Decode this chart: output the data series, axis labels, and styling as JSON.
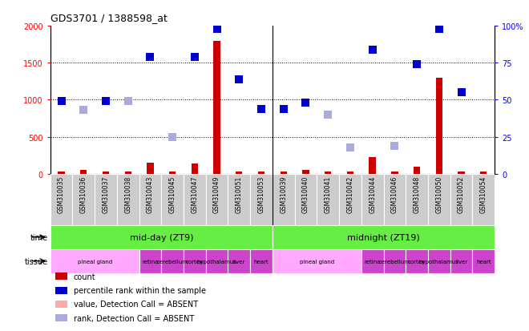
{
  "title": "GDS3701 / 1388598_at",
  "samples": [
    "GSM310035",
    "GSM310036",
    "GSM310037",
    "GSM310038",
    "GSM310043",
    "GSM310045",
    "GSM310047",
    "GSM310049",
    "GSM310051",
    "GSM310053",
    "GSM310039",
    "GSM310040",
    "GSM310041",
    "GSM310042",
    "GSM310044",
    "GSM310046",
    "GSM310048",
    "GSM310050",
    "GSM310052",
    "GSM310054"
  ],
  "count_values": [
    30,
    50,
    30,
    30,
    150,
    30,
    140,
    1800,
    30,
    30,
    30,
    50,
    30,
    30,
    220,
    30,
    100,
    1300,
    30,
    30
  ],
  "count_absent": [
    false,
    false,
    false,
    false,
    false,
    false,
    false,
    false,
    false,
    false,
    false,
    false,
    false,
    false,
    false,
    false,
    false,
    false,
    false,
    false
  ],
  "rank_values": [
    980,
    860,
    980,
    980,
    1580,
    500,
    1580,
    1960,
    1280,
    880,
    880,
    960,
    800,
    360,
    1680,
    380,
    1480,
    1960,
    1100,
    null
  ],
  "rank_absent": [
    false,
    true,
    false,
    true,
    false,
    true,
    false,
    false,
    false,
    false,
    false,
    false,
    true,
    true,
    false,
    true,
    false,
    false,
    false,
    true
  ],
  "ylim": [
    0,
    2000
  ],
  "yticks": [
    0,
    500,
    1000,
    1500,
    2000
  ],
  "right_yticks": [
    0,
    25,
    50,
    75,
    100
  ],
  "plot_bg": "#ffffff",
  "bar_color": "#cc0000",
  "rank_present_color": "#0000cc",
  "rank_absent_color": "#aaaadd",
  "count_absent_color": "#ffaaaa",
  "time_row_color": "#66ee44",
  "tissue_pineal_color": "#ffaaff",
  "tissue_other_color": "#cc44cc",
  "header_bg": "#cccccc",
  "time_groups": [
    {
      "label": "mid-day (ZT9)",
      "start": 0,
      "end": 9
    },
    {
      "label": "midnight (ZT19)",
      "start": 10,
      "end": 19
    }
  ],
  "tissue_groups": [
    {
      "label": "pineal gland",
      "start": 0,
      "end": 3,
      "color": "#ffaaff"
    },
    {
      "label": "retina",
      "start": 4,
      "end": 4,
      "color": "#cc44cc"
    },
    {
      "label": "cerebellum",
      "start": 5,
      "end": 5,
      "color": "#cc44cc"
    },
    {
      "label": "cortex",
      "start": 6,
      "end": 6,
      "color": "#cc44cc"
    },
    {
      "label": "hypothalamus",
      "start": 7,
      "end": 7,
      "color": "#cc44cc"
    },
    {
      "label": "liver",
      "start": 8,
      "end": 8,
      "color": "#cc44cc"
    },
    {
      "label": "heart",
      "start": 9,
      "end": 9,
      "color": "#cc44cc"
    },
    {
      "label": "pineal gland",
      "start": 10,
      "end": 13,
      "color": "#ffaaff"
    },
    {
      "label": "retina",
      "start": 14,
      "end": 14,
      "color": "#cc44cc"
    },
    {
      "label": "cerebellum",
      "start": 15,
      "end": 15,
      "color": "#cc44cc"
    },
    {
      "label": "cortex",
      "start": 16,
      "end": 16,
      "color": "#cc44cc"
    },
    {
      "label": "hypothalamus",
      "start": 17,
      "end": 17,
      "color": "#cc44cc"
    },
    {
      "label": "liver",
      "start": 18,
      "end": 18,
      "color": "#cc44cc"
    },
    {
      "label": "heart",
      "start": 19,
      "end": 19,
      "color": "#cc44cc"
    }
  ],
  "legend_items": [
    {
      "label": "count",
      "color": "#cc0000"
    },
    {
      "label": "percentile rank within the sample",
      "color": "#0000cc"
    },
    {
      "label": "value, Detection Call = ABSENT",
      "color": "#ffaaaa"
    },
    {
      "label": "rank, Detection Call = ABSENT",
      "color": "#aaaadd"
    }
  ]
}
